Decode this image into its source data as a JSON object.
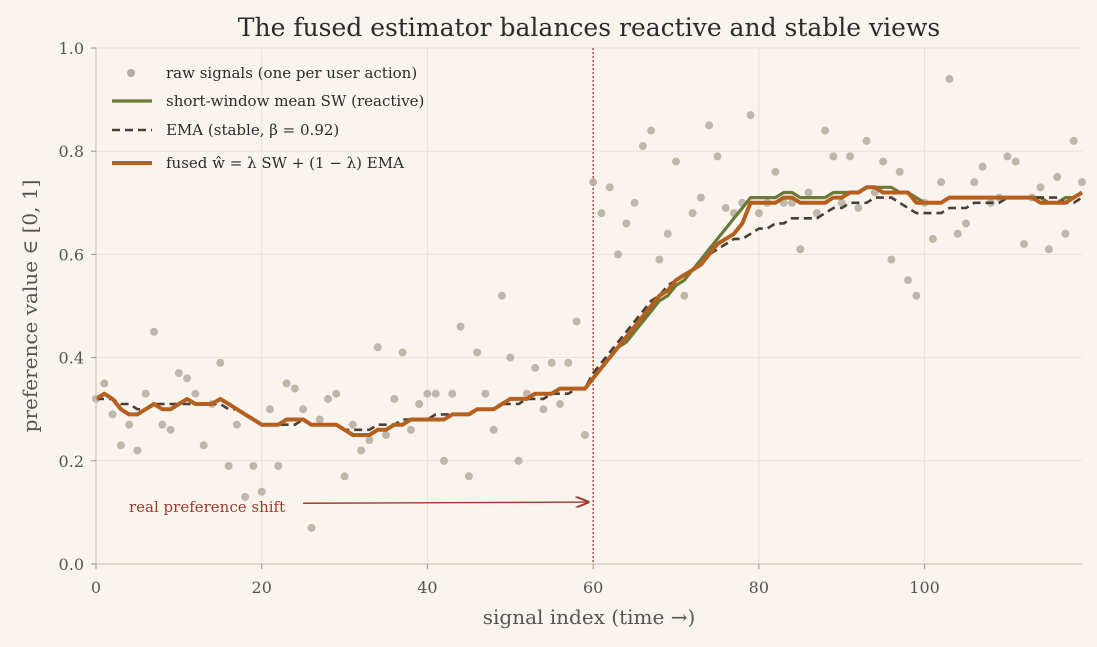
{
  "chart_data": {
    "type": "line",
    "title": "The fused estimator balances reactive and stable views",
    "xlabel": "signal index  (time →)",
    "ylabel": "preference value  ∈ [0, 1]",
    "xlim": [
      0,
      119
    ],
    "ylim": [
      0,
      1.0
    ],
    "xticks": [
      0,
      20,
      40,
      60,
      80,
      100
    ],
    "yticks": [
      0.0,
      0.2,
      0.4,
      0.6,
      0.8,
      1.0
    ],
    "xtick_labels": [
      "0",
      "20",
      "40",
      "60",
      "80",
      "100"
    ],
    "ytick_labels": [
      "0.0",
      "0.2",
      "0.4",
      "0.6",
      "0.8",
      "1.0"
    ],
    "grid": true,
    "legend_position": "top-left",
    "colors": {
      "background": "#f9f5ee",
      "grid": "#e8e2d6",
      "raw": "#b5ab9e",
      "sw": "#6b7a36",
      "ema": "#4a3f35",
      "fused": "#b5601f",
      "shift": "#a0392a"
    },
    "legend": [
      {
        "key": "raw",
        "label": "raw signals (one per user action)"
      },
      {
        "key": "sw",
        "label": "short-window mean  SW  (reactive)"
      },
      {
        "key": "ema",
        "label": "EMA  (stable, β = 0.92)"
      },
      {
        "key": "fused",
        "label": "fused  ŵ = λ SW + (1 − λ) EMA"
      }
    ],
    "annotation": {
      "text": "real preference shift",
      "arrow_from": [
        25,
        0.11
      ],
      "arrow_to": [
        60,
        0.12
      ]
    },
    "shift_x": 60,
    "series": [
      {
        "name": "raw signals (one per user action)",
        "style": "scatter",
        "values": [
          0.32,
          0.35,
          0.29,
          0.23,
          0.27,
          0.22,
          0.33,
          0.45,
          0.27,
          0.26,
          0.37,
          0.36,
          0.33,
          0.23,
          0.31,
          0.39,
          0.19,
          0.27,
          0.13,
          0.19,
          0.14,
          0.3,
          0.19,
          0.35,
          0.34,
          0.3,
          0.07,
          0.28,
          0.32,
          0.33,
          0.17,
          0.27,
          0.22,
          0.24,
          0.42,
          0.25,
          0.32,
          0.41,
          0.26,
          0.31,
          0.33,
          0.33,
          0.2,
          0.33,
          0.46,
          0.17,
          0.41,
          0.33,
          0.26,
          0.52,
          0.4,
          0.2,
          0.33,
          0.38,
          0.3,
          0.39,
          0.31,
          0.39,
          0.47,
          0.25,
          0.74,
          0.68,
          0.73,
          0.6,
          0.66,
          0.7,
          0.81,
          0.84,
          0.59,
          0.64,
          0.78,
          0.52,
          0.68,
          0.71,
          0.85,
          0.79,
          0.69,
          0.68,
          0.7,
          0.87,
          0.68,
          0.7,
          0.76,
          0.7,
          0.7,
          0.61,
          0.72,
          0.68,
          0.84,
          0.79,
          0.7,
          0.79,
          0.69,
          0.82,
          0.72,
          0.78,
          0.59,
          0.76,
          0.55,
          0.52,
          0.7,
          0.63,
          0.74,
          0.94,
          0.64,
          0.66,
          0.74,
          0.77,
          0.7,
          0.71,
          0.79,
          0.78,
          0.62,
          0.71,
          0.73,
          0.61,
          0.75,
          0.64,
          0.82,
          0.74
        ]
      },
      {
        "name": "short-window mean  SW  (reactive)",
        "style": "solid",
        "values": [
          0.32,
          0.33,
          0.32,
          0.3,
          0.29,
          0.29,
          0.3,
          0.31,
          0.3,
          0.3,
          0.31,
          0.32,
          0.31,
          0.31,
          0.31,
          0.32,
          0.31,
          0.3,
          0.29,
          0.28,
          0.27,
          0.27,
          0.27,
          0.28,
          0.28,
          0.28,
          0.27,
          0.27,
          0.27,
          0.27,
          0.26,
          0.25,
          0.25,
          0.25,
          0.26,
          0.26,
          0.27,
          0.27,
          0.28,
          0.28,
          0.28,
          0.28,
          0.28,
          0.29,
          0.29,
          0.29,
          0.3,
          0.3,
          0.3,
          0.31,
          0.32,
          0.32,
          0.32,
          0.33,
          0.33,
          0.33,
          0.34,
          0.34,
          0.34,
          0.34,
          0.36,
          0.38,
          0.4,
          0.42,
          0.43,
          0.45,
          0.47,
          0.49,
          0.51,
          0.52,
          0.54,
          0.55,
          0.57,
          0.59,
          0.61,
          0.63,
          0.65,
          0.67,
          0.69,
          0.71,
          0.71,
          0.71,
          0.71,
          0.72,
          0.72,
          0.71,
          0.71,
          0.71,
          0.71,
          0.72,
          0.72,
          0.72,
          0.72,
          0.73,
          0.73,
          0.73,
          0.73,
          0.72,
          0.72,
          0.71,
          0.7,
          0.7,
          0.7,
          0.71,
          0.71,
          0.71,
          0.71,
          0.71,
          0.71,
          0.71,
          0.71,
          0.71,
          0.71,
          0.71,
          0.71,
          0.7,
          0.7,
          0.71,
          0.71,
          0.72
        ]
      },
      {
        "name": "EMA  (stable, β = 0.92)",
        "style": "dashed",
        "values": [
          0.32,
          0.32,
          0.32,
          0.31,
          0.31,
          0.3,
          0.3,
          0.31,
          0.31,
          0.31,
          0.31,
          0.31,
          0.31,
          0.31,
          0.31,
          0.31,
          0.3,
          0.3,
          0.29,
          0.28,
          0.27,
          0.27,
          0.27,
          0.27,
          0.27,
          0.28,
          0.27,
          0.27,
          0.27,
          0.27,
          0.26,
          0.26,
          0.26,
          0.26,
          0.27,
          0.27,
          0.27,
          0.28,
          0.28,
          0.28,
          0.28,
          0.29,
          0.29,
          0.29,
          0.29,
          0.29,
          0.3,
          0.3,
          0.3,
          0.31,
          0.31,
          0.31,
          0.32,
          0.32,
          0.32,
          0.33,
          0.33,
          0.33,
          0.34,
          0.34,
          0.37,
          0.39,
          0.41,
          0.43,
          0.45,
          0.47,
          0.49,
          0.51,
          0.52,
          0.54,
          0.55,
          0.56,
          0.57,
          0.58,
          0.6,
          0.61,
          0.62,
          0.63,
          0.63,
          0.64,
          0.65,
          0.65,
          0.66,
          0.66,
          0.67,
          0.67,
          0.67,
          0.67,
          0.68,
          0.69,
          0.69,
          0.7,
          0.7,
          0.7,
          0.71,
          0.71,
          0.71,
          0.7,
          0.69,
          0.68,
          0.68,
          0.68,
          0.68,
          0.69,
          0.69,
          0.69,
          0.7,
          0.7,
          0.7,
          0.7,
          0.71,
          0.71,
          0.71,
          0.71,
          0.71,
          0.71,
          0.71,
          0.7,
          0.7,
          0.71
        ]
      },
      {
        "name": "fused  ŵ = λ SW + (1 − λ) EMA",
        "style": "solid",
        "values": [
          0.32,
          0.33,
          0.32,
          0.3,
          0.29,
          0.29,
          0.3,
          0.31,
          0.3,
          0.3,
          0.31,
          0.32,
          0.31,
          0.31,
          0.31,
          0.32,
          0.31,
          0.3,
          0.29,
          0.28,
          0.27,
          0.27,
          0.27,
          0.28,
          0.28,
          0.28,
          0.27,
          0.27,
          0.27,
          0.27,
          0.26,
          0.25,
          0.25,
          0.25,
          0.26,
          0.26,
          0.27,
          0.27,
          0.28,
          0.28,
          0.28,
          0.28,
          0.28,
          0.29,
          0.29,
          0.29,
          0.3,
          0.3,
          0.3,
          0.31,
          0.32,
          0.32,
          0.32,
          0.33,
          0.33,
          0.33,
          0.34,
          0.34,
          0.34,
          0.34,
          0.36,
          0.38,
          0.4,
          0.42,
          0.44,
          0.46,
          0.48,
          0.5,
          0.52,
          0.53,
          0.55,
          0.56,
          0.57,
          0.58,
          0.6,
          0.62,
          0.63,
          0.64,
          0.66,
          0.7,
          0.7,
          0.7,
          0.7,
          0.71,
          0.71,
          0.7,
          0.7,
          0.7,
          0.7,
          0.71,
          0.71,
          0.72,
          0.72,
          0.73,
          0.73,
          0.72,
          0.72,
          0.72,
          0.72,
          0.7,
          0.7,
          0.7,
          0.7,
          0.71,
          0.71,
          0.71,
          0.71,
          0.71,
          0.71,
          0.71,
          0.71,
          0.71,
          0.71,
          0.71,
          0.7,
          0.7,
          0.7,
          0.7,
          0.71,
          0.72
        ]
      }
    ]
  }
}
